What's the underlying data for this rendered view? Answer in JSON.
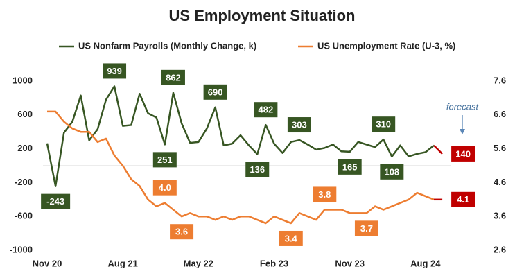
{
  "chart_data": {
    "type": "line",
    "title": "US Employment Situation",
    "categories": [
      "Nov 20",
      null,
      null,
      null,
      null,
      null,
      null,
      null,
      null,
      "Aug 21",
      null,
      null,
      null,
      null,
      null,
      null,
      null,
      null,
      "May 22",
      null,
      null,
      null,
      null,
      null,
      null,
      null,
      null,
      "Feb 23",
      null,
      null,
      null,
      null,
      null,
      null,
      null,
      null,
      "Nov 23",
      null,
      null,
      null,
      null,
      null,
      null,
      null,
      null,
      "Aug 24",
      null,
      null
    ],
    "series": [
      {
        "name": "US Nonfarm Payrolls (Monthly Change, k)",
        "color": "#375623",
        "axis": "y",
        "values": [
          264,
          -243,
          390,
          520,
          830,
          300,
          430,
          780,
          939,
          470,
          480,
          850,
          620,
          570,
          251,
          862,
          500,
          270,
          280,
          440,
          690,
          240,
          260,
          360,
          240,
          136,
          482,
          260,
          150,
          280,
          303,
          250,
          190,
          210,
          250,
          170,
          165,
          280,
          250,
          220,
          310,
          108,
          240,
          110,
          140,
          160,
          240,
          140
        ],
        "value_labels": [
          null,
          "-243",
          null,
          null,
          null,
          null,
          null,
          null,
          "939",
          null,
          null,
          null,
          null,
          null,
          "251",
          "862",
          null,
          null,
          null,
          null,
          "690",
          null,
          null,
          null,
          null,
          "136",
          "482",
          null,
          null,
          null,
          "303",
          null,
          null,
          null,
          null,
          null,
          "165",
          null,
          null,
          null,
          "310",
          "108",
          null,
          null,
          null,
          null,
          null,
          "140"
        ]
      },
      {
        "name": "US Unemployment Rate (U-3, %)",
        "color": "#ed7d31",
        "axis": "y2",
        "values": [
          6.7,
          6.7,
          6.4,
          6.2,
          6.1,
          6.1,
          5.8,
          5.9,
          5.4,
          5.1,
          4.7,
          4.5,
          4.1,
          3.9,
          4.0,
          3.8,
          3.6,
          3.7,
          3.6,
          3.6,
          3.5,
          3.6,
          3.5,
          3.6,
          3.6,
          3.5,
          3.4,
          3.6,
          3.5,
          3.4,
          3.7,
          3.6,
          3.5,
          3.8,
          3.8,
          3.8,
          3.7,
          3.7,
          3.7,
          3.9,
          3.8,
          3.9,
          4.0,
          4.1,
          4.3,
          4.2,
          4.1,
          4.1
        ],
        "value_labels": [
          null,
          null,
          null,
          null,
          null,
          null,
          null,
          null,
          null,
          null,
          null,
          null,
          null,
          null,
          "4.0",
          null,
          "3.6",
          null,
          null,
          null,
          null,
          null,
          null,
          null,
          null,
          null,
          null,
          null,
          null,
          "3.4",
          null,
          null,
          null,
          "3.8",
          null,
          null,
          null,
          null,
          "3.7",
          null,
          null,
          null,
          null,
          null,
          null,
          null,
          null,
          "4.1"
        ]
      }
    ],
    "ylim": [
      -1000,
      1000
    ],
    "yticks": [
      -1000,
      -600,
      -200,
      200,
      600,
      1000
    ],
    "y2lim": [
      2.6,
      7.6
    ],
    "y2ticks": [
      2.6,
      3.6,
      4.6,
      5.6,
      6.6,
      7.6
    ],
    "forecast": {
      "label": "forecast",
      "color": "#c00000"
    },
    "legend": "top"
  }
}
